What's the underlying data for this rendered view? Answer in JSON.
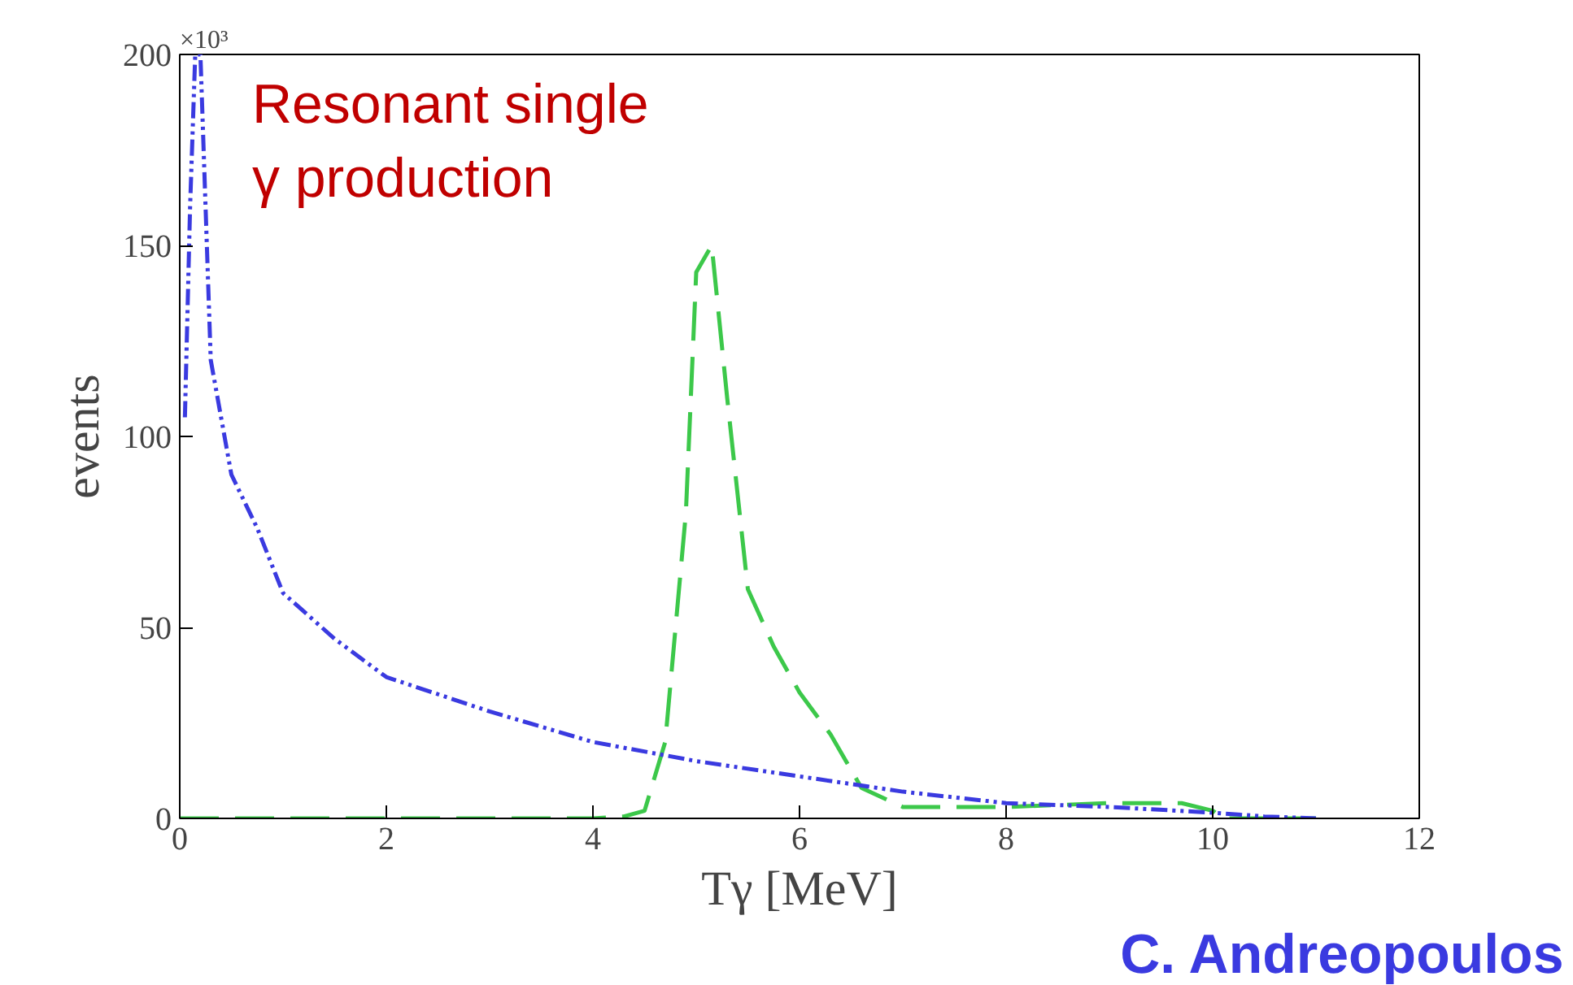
{
  "chart_data": {
    "type": "line",
    "xlabel": "Tγ [MeV]",
    "ylabel": "events",
    "annotations": [
      "×10³",
      "Resonant single\nγ production",
      "C. Andreopoulos"
    ],
    "xlim": [
      0,
      12
    ],
    "xticks": [
      0,
      2,
      4,
      6,
      8,
      10,
      12
    ],
    "ylim": [
      0,
      200
    ],
    "yticks": [
      0,
      50,
      100,
      150,
      200
    ],
    "grid": false,
    "series": [
      {
        "color": "#3cc84a",
        "line_style": "dashed",
        "x": [
          0,
          1,
          2,
          3,
          4,
          4.3,
          4.5,
          4.7,
          4.9,
          5.0,
          5.15,
          5.3,
          5.5,
          5.75,
          6,
          6.3,
          6.6,
          7,
          8,
          9,
          9.7,
          10,
          10.1,
          11
        ],
        "values": [
          0,
          0,
          0,
          0,
          0,
          0.5,
          2,
          20,
          80,
          143,
          150,
          110,
          60,
          45,
          33,
          22,
          8,
          3,
          3,
          4,
          4,
          2,
          0,
          0
        ]
      },
      {
        "color": "#3a3ae0",
        "line_style": "dashdot",
        "x": [
          0.05,
          0.1,
          0.15,
          0.2,
          0.3,
          0.5,
          0.75,
          1,
          1.5,
          2,
          3,
          4,
          5,
          6,
          7,
          8,
          9,
          10,
          10.5,
          11
        ],
        "values": [
          105,
          160,
          200,
          200,
          120,
          90,
          76,
          59,
          47,
          37,
          28,
          20,
          15,
          11,
          7,
          4,
          3,
          1.5,
          0.5,
          0
        ]
      }
    ]
  }
}
